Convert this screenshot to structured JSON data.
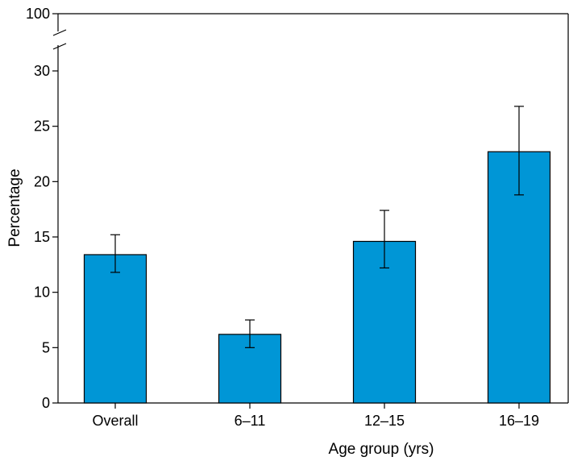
{
  "chart_data": {
    "type": "bar",
    "categories": [
      "Overall",
      "6–11",
      "12–15",
      "16–19"
    ],
    "values": [
      13.4,
      6.2,
      14.6,
      22.7
    ],
    "error_low": [
      11.8,
      5.0,
      12.2,
      18.8
    ],
    "error_high": [
      15.2,
      7.5,
      17.4,
      26.8
    ],
    "xlabel": "Age group (yrs)",
    "ylabel": "Percentage",
    "yticks": [
      0,
      5,
      10,
      15,
      20,
      25,
      30
    ],
    "yticks_after_break": [
      100
    ],
    "ylim": [
      0,
      30
    ],
    "y_axis_break": true,
    "grid": false,
    "bar_color": "#0096D6"
  }
}
